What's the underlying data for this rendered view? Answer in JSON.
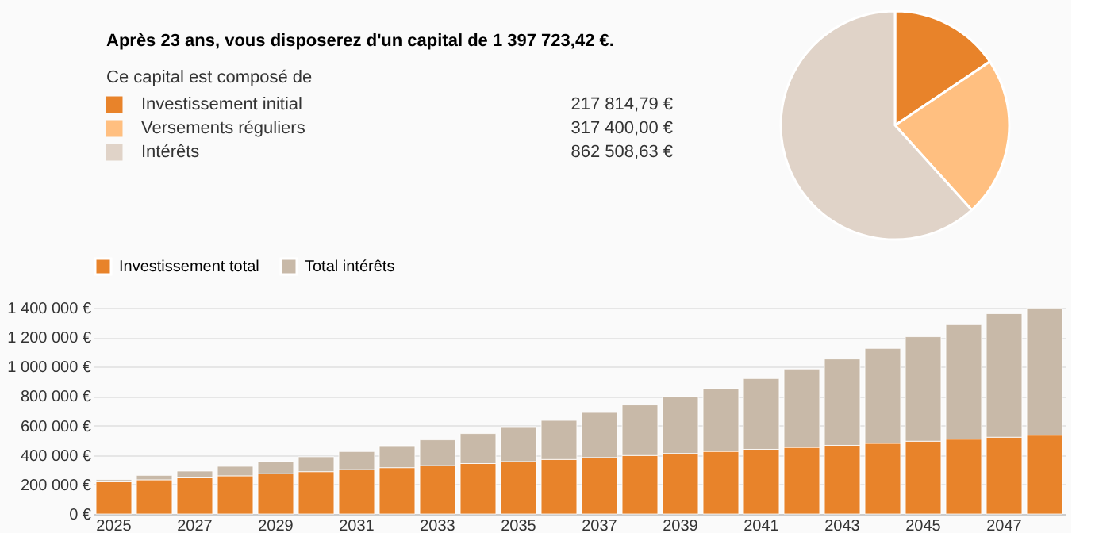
{
  "chart_data": [
    {
      "type": "pie",
      "title": "Après 23 ans, vous disposerez d'un capital de 1 397 723,42 €.",
      "subtitle": "Ce capital est composé de",
      "categories": [
        "Investissement initial",
        "Versements réguliers",
        "Intérêts"
      ],
      "values": [
        217814.79,
        317400.0,
        862508.63
      ],
      "colors": [
        "#e8832a",
        "#ffbf80",
        "#e0d3c8"
      ],
      "value_labels": [
        "217 814,79 €",
        "317 400,00 €",
        "862 508,63 €"
      ],
      "legend": "left"
    },
    {
      "type": "bar",
      "stacked": true,
      "categories": [
        "2025",
        null,
        "2027",
        null,
        "2029",
        null,
        "2031",
        null,
        "2033",
        null,
        "2035",
        null,
        "2037",
        null,
        "2039",
        null,
        "2041",
        null,
        "2043",
        null,
        "2045",
        null,
        "2047",
        null
      ],
      "series": [
        {
          "name": "Investissement total",
          "color": "#e8832a",
          "values": [
            218000,
            232000,
            245000,
            259000,
            273000,
            287000,
            301000,
            314000,
            328000,
            342000,
            356000,
            370000,
            383000,
            397000,
            411000,
            425000,
            439000,
            452000,
            466000,
            480000,
            494000,
            508000,
            521000,
            535000
          ]
        },
        {
          "name": "Total intérêts",
          "color": "#c8b9a8",
          "values": [
            15000,
            30000,
            46000,
            64000,
            82000,
            101000,
            123000,
            149000,
            175000,
            204000,
            236000,
            265000,
            306000,
            343000,
            386000,
            426000,
            480000,
            532000,
            586000,
            644000,
            709000,
            777000,
            839000,
            863000
          ]
        }
      ],
      "ylim": [
        0,
        1400000
      ],
      "yticks": [
        {
          "value": 0,
          "label": "0 €"
        },
        {
          "value": 200000,
          "label": "200 000 €"
        },
        {
          "value": 400000,
          "label": "400 000 €"
        },
        {
          "value": 600000,
          "label": "600 000 €"
        },
        {
          "value": 800000,
          "label": "800 000 €"
        },
        {
          "value": 1000000,
          "label": "1 000 000 €"
        },
        {
          "value": 1200000,
          "label": "1 200 000 €"
        },
        {
          "value": 1400000,
          "label": "1 400 000 €"
        }
      ],
      "grid": "y",
      "legend": "top"
    }
  ]
}
